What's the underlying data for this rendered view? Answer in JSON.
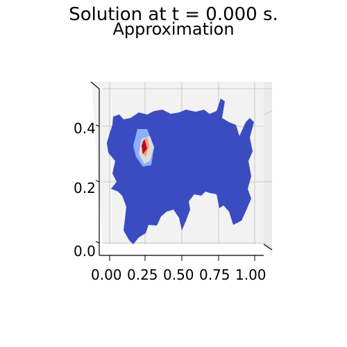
{
  "chart_data": {
    "type": "surface-contour",
    "suptitle": "Solution at t = 0.000 s.",
    "title": "Approximation",
    "xlim": [
      0.0,
      1.0
    ],
    "ylim": [
      0.0,
      0.5
    ],
    "x_ticks": [
      "0.00",
      "0.25",
      "0.50",
      "0.75",
      "1.00"
    ],
    "y_ticks": [
      "0.0",
      "0.2",
      "0.4"
    ],
    "colormap": "coolwarm",
    "colors": {
      "background_level": "#3b4cc0",
      "low_mid": "#8db0fe",
      "mid": "#dddcdc",
      "mid_high": "#f49a7b",
      "peak": "#b40426",
      "pane": "#f2f2f2",
      "grid": "#c8c8c8"
    },
    "peak_location": {
      "x": 0.22,
      "y": 0.35
    }
  }
}
